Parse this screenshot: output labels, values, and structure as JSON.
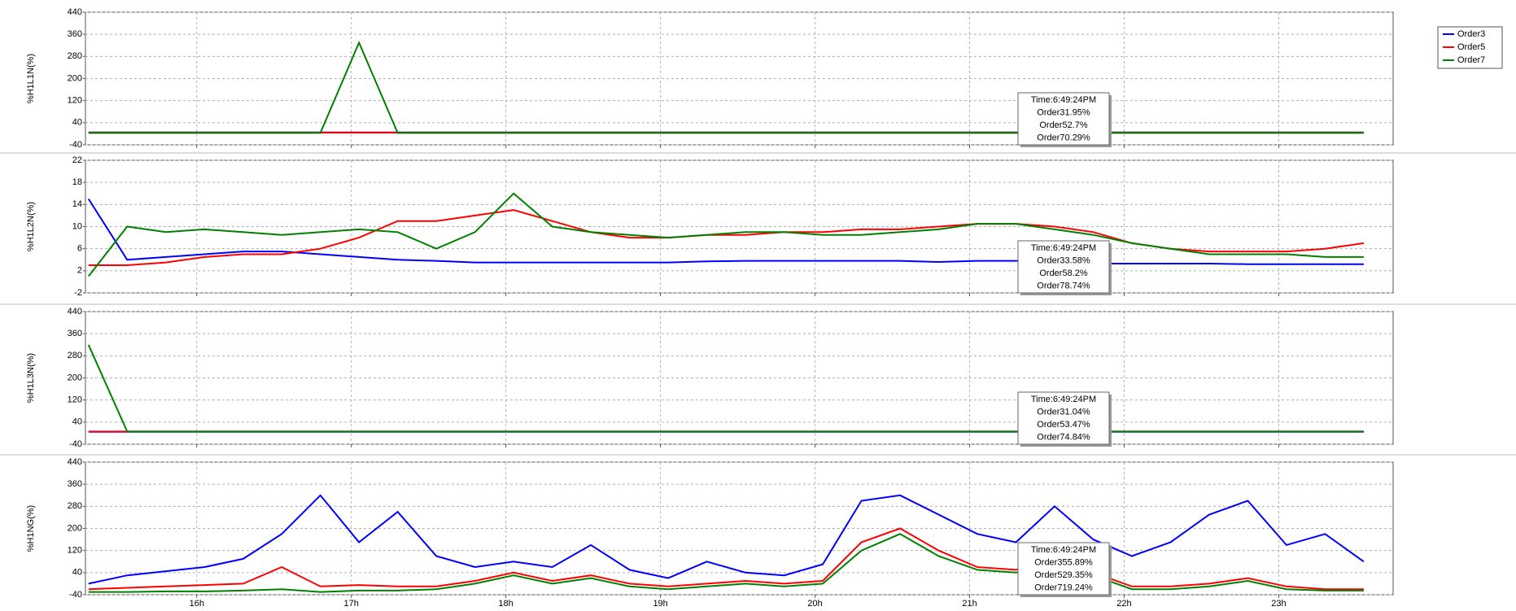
{
  "chart_data": [
    {
      "type": "line",
      "y_label": "%H1L1N(%)",
      "x": [
        15.3,
        15.55,
        15.8,
        16.05,
        16.3,
        16.55,
        16.8,
        17.05,
        17.3,
        17.55,
        17.8,
        18.05,
        18.3,
        18.55,
        18.8,
        19.05,
        19.3,
        19.55,
        19.8,
        20.05,
        20.3,
        20.55,
        20.8,
        21.05,
        21.3,
        21.55,
        21.8,
        22.05,
        22.3,
        22.55,
        22.8,
        23.05,
        23.3,
        23.55
      ],
      "xlim": [
        15.28,
        23.74
      ],
      "xticks": [
        {
          "value": 16,
          "label": "16h"
        },
        {
          "value": 17,
          "label": "17h"
        },
        {
          "value": 18,
          "label": "18h"
        },
        {
          "value": 19,
          "label": "19h"
        },
        {
          "value": 20,
          "label": "20h"
        },
        {
          "value": 21,
          "label": "21h"
        },
        {
          "value": 22,
          "label": "22h"
        },
        {
          "value": 23,
          "label": "23h"
        }
      ],
      "ylim": [
        -40,
        440
      ],
      "yticks": [
        -40,
        40,
        120,
        200,
        280,
        360,
        440
      ],
      "grid": true,
      "series": [
        {
          "name": "Order3",
          "color": "#0000ff",
          "values": [
            5,
            5,
            5,
            5,
            5,
            5,
            5,
            5,
            5,
            5,
            5,
            5,
            5,
            5,
            5,
            5,
            5,
            5,
            5,
            5,
            5,
            5,
            5,
            5,
            5,
            5,
            5,
            5,
            5,
            5,
            5,
            5,
            5,
            5
          ]
        },
        {
          "name": "Order5",
          "color": "#ff0000",
          "values": [
            4,
            4,
            4,
            4,
            4,
            4,
            4,
            4,
            4,
            4,
            4,
            4,
            4,
            4,
            4,
            4,
            4,
            4,
            4,
            4,
            4,
            4,
            4,
            4,
            4,
            4,
            4,
            4,
            4,
            4,
            4,
            4,
            4,
            4
          ]
        },
        {
          "name": "Order7",
          "color": "#008000",
          "values": [
            3,
            3,
            3,
            3,
            3,
            3,
            3,
            330,
            3,
            3,
            3,
            3,
            3,
            3,
            3,
            3,
            3,
            3,
            3,
            3,
            3,
            3,
            3,
            3,
            3,
            3,
            3,
            3,
            3,
            3,
            3,
            3,
            3,
            3
          ]
        }
      ],
      "annotations": [
        "Time:6:49:24PM",
        "Order31.95%",
        "Order52.7%",
        "Order70.29%"
      ]
    },
    {
      "type": "line",
      "y_label": "%H1L2N(%)",
      "x": [
        15.3,
        15.55,
        15.8,
        16.05,
        16.3,
        16.55,
        16.8,
        17.05,
        17.3,
        17.55,
        17.8,
        18.05,
        18.3,
        18.55,
        18.8,
        19.05,
        19.3,
        19.55,
        19.8,
        20.05,
        20.3,
        20.55,
        20.8,
        21.05,
        21.3,
        21.55,
        21.8,
        22.05,
        22.3,
        22.55,
        22.8,
        23.05,
        23.3,
        23.55
      ],
      "xlim": [
        15.28,
        23.74
      ],
      "xticks": [
        {
          "value": 16,
          "label": "16h"
        },
        {
          "value": 17,
          "label": "17h"
        },
        {
          "value": 18,
          "label": "18h"
        },
        {
          "value": 19,
          "label": "19h"
        },
        {
          "value": 20,
          "label": "20h"
        },
        {
          "value": 21,
          "label": "21h"
        },
        {
          "value": 22,
          "label": "22h"
        },
        {
          "value": 23,
          "label": "23h"
        }
      ],
      "ylim": [
        -2,
        22
      ],
      "yticks": [
        -2,
        2,
        6,
        10,
        14,
        18,
        22
      ],
      "grid": true,
      "series": [
        {
          "name": "Order3",
          "color": "#0000ff",
          "values": [
            15,
            4,
            4.5,
            5,
            5.5,
            5.5,
            5,
            4.5,
            4,
            3.8,
            3.5,
            3.5,
            3.5,
            3.5,
            3.5,
            3.5,
            3.7,
            3.8,
            3.8,
            3.8,
            3.8,
            3.8,
            3.6,
            3.8,
            3.8,
            3.6,
            3.3,
            3.3,
            3.3,
            3.3,
            3.2,
            3.2,
            3.2,
            3.2
          ]
        },
        {
          "name": "Order5",
          "color": "#ff0000",
          "values": [
            3,
            3,
            3.5,
            4.5,
            5,
            5,
            6,
            8,
            11,
            11,
            12,
            13,
            11,
            9,
            8,
            8,
            8.5,
            8.5,
            9,
            9,
            9.5,
            9.5,
            10,
            10.5,
            10.5,
            10,
            9,
            7,
            6,
            5.5,
            5.5,
            5.5,
            6,
            7
          ]
        },
        {
          "name": "Order7",
          "color": "#008000",
          "values": [
            1,
            10,
            9,
            9.5,
            9,
            8.5,
            9,
            9.5,
            9,
            6,
            9,
            16,
            10,
            9,
            8.5,
            8,
            8.5,
            9,
            9,
            8.5,
            8.5,
            9,
            9.5,
            10.5,
            10.5,
            9.5,
            8.5,
            7,
            6,
            5,
            5,
            5,
            4.5,
            4.5
          ]
        }
      ],
      "annotations": [
        "Time:6:49:24PM",
        "Order33.58%",
        "Order58.2%",
        "Order78.74%"
      ]
    },
    {
      "type": "line",
      "y_label": "%H1L3N(%)",
      "x": [
        15.3,
        15.55,
        15.8,
        16.05,
        16.3,
        16.55,
        16.8,
        17.05,
        17.3,
        17.55,
        17.8,
        18.05,
        18.3,
        18.55,
        18.8,
        19.05,
        19.3,
        19.55,
        19.8,
        20.05,
        20.3,
        20.55,
        20.8,
        21.05,
        21.3,
        21.55,
        21.8,
        22.05,
        22.3,
        22.55,
        22.8,
        23.05,
        23.3,
        23.55
      ],
      "xlim": [
        15.28,
        23.74
      ],
      "xticks": [
        {
          "value": 16,
          "label": "16h"
        },
        {
          "value": 17,
          "label": "17h"
        },
        {
          "value": 18,
          "label": "18h"
        },
        {
          "value": 19,
          "label": "19h"
        },
        {
          "value": 20,
          "label": "20h"
        },
        {
          "value": 21,
          "label": "21h"
        },
        {
          "value": 22,
          "label": "22h"
        },
        {
          "value": 23,
          "label": "23h"
        }
      ],
      "ylim": [
        -40,
        440
      ],
      "yticks": [
        -40,
        40,
        120,
        200,
        280,
        360,
        440
      ],
      "grid": true,
      "series": [
        {
          "name": "Order3",
          "color": "#0000ff",
          "values": [
            5,
            5,
            5,
            5,
            5,
            5,
            5,
            5,
            5,
            5,
            5,
            5,
            5,
            5,
            5,
            5,
            5,
            5,
            5,
            5,
            5,
            5,
            5,
            5,
            5,
            5,
            5,
            5,
            5,
            5,
            5,
            5,
            5,
            5
          ]
        },
        {
          "name": "Order5",
          "color": "#ff0000",
          "values": [
            6,
            6,
            6,
            6,
            6,
            6,
            6,
            6,
            6,
            6,
            6,
            6,
            6,
            6,
            6,
            6,
            6,
            6,
            6,
            6,
            6,
            6,
            6,
            6,
            6,
            6,
            6,
            6,
            6,
            6,
            6,
            6,
            6,
            6
          ]
        },
        {
          "name": "Order7",
          "color": "#008000",
          "values": [
            320,
            6,
            6,
            6,
            6,
            6,
            6,
            6,
            6,
            6,
            6,
            6,
            6,
            6,
            6,
            6,
            6,
            6,
            6,
            6,
            6,
            6,
            6,
            6,
            6,
            6,
            6,
            6,
            6,
            6,
            6,
            6,
            6,
            6
          ]
        }
      ],
      "annotations": [
        "Time:6:49:24PM",
        "Order31.04%",
        "Order53.47%",
        "Order74.84%"
      ]
    },
    {
      "type": "line",
      "y_label": "%H1NG(%)",
      "x": [
        15.3,
        15.55,
        15.8,
        16.05,
        16.3,
        16.55,
        16.8,
        17.05,
        17.3,
        17.55,
        17.8,
        18.05,
        18.3,
        18.55,
        18.8,
        19.05,
        19.3,
        19.55,
        19.8,
        20.05,
        20.3,
        20.55,
        20.8,
        21.05,
        21.3,
        21.55,
        21.8,
        22.05,
        22.3,
        22.55,
        22.8,
        23.05,
        23.3,
        23.55
      ],
      "xlim": [
        15.28,
        23.74
      ],
      "xticks": [
        {
          "value": 16,
          "label": "16h"
        },
        {
          "value": 17,
          "label": "17h"
        },
        {
          "value": 18,
          "label": "18h"
        },
        {
          "value": 19,
          "label": "19h"
        },
        {
          "value": 20,
          "label": "20h"
        },
        {
          "value": 21,
          "label": "21h"
        },
        {
          "value": 22,
          "label": "22h"
        },
        {
          "value": 23,
          "label": "23h"
        }
      ],
      "ylim": [
        -40,
        440
      ],
      "yticks": [
        -40,
        40,
        120,
        200,
        280,
        360,
        440
      ],
      "grid": true,
      "series": [
        {
          "name": "Order3",
          "color": "#0000ff",
          "values": [
            0,
            30,
            45,
            60,
            90,
            180,
            320,
            150,
            260,
            100,
            60,
            80,
            60,
            140,
            50,
            20,
            80,
            40,
            30,
            70,
            300,
            320,
            250,
            180,
            150,
            280,
            160,
            100,
            150,
            250,
            300,
            140,
            180,
            80
          ]
        },
        {
          "name": "Order5",
          "color": "#ff0000",
          "values": [
            -20,
            -15,
            -10,
            -5,
            0,
            60,
            -10,
            -5,
            -10,
            -10,
            10,
            40,
            10,
            30,
            0,
            -10,
            0,
            10,
            0,
            10,
            150,
            200,
            120,
            60,
            50,
            90,
            40,
            -10,
            -10,
            0,
            20,
            -10,
            -20,
            -20
          ]
        },
        {
          "name": "Order7",
          "color": "#008000",
          "values": [
            -30,
            -30,
            -28,
            -28,
            -25,
            -20,
            -30,
            -25,
            -25,
            -20,
            0,
            30,
            0,
            20,
            -10,
            -20,
            -10,
            0,
            -10,
            0,
            120,
            180,
            100,
            50,
            40,
            60,
            30,
            -20,
            -20,
            -10,
            10,
            -20,
            -25,
            -25
          ]
        }
      ],
      "annotations": [
        "Time:6:49:24PM",
        "Order355.89%",
        "Order529.35%",
        "Order719.24%"
      ]
    }
  ]
}
